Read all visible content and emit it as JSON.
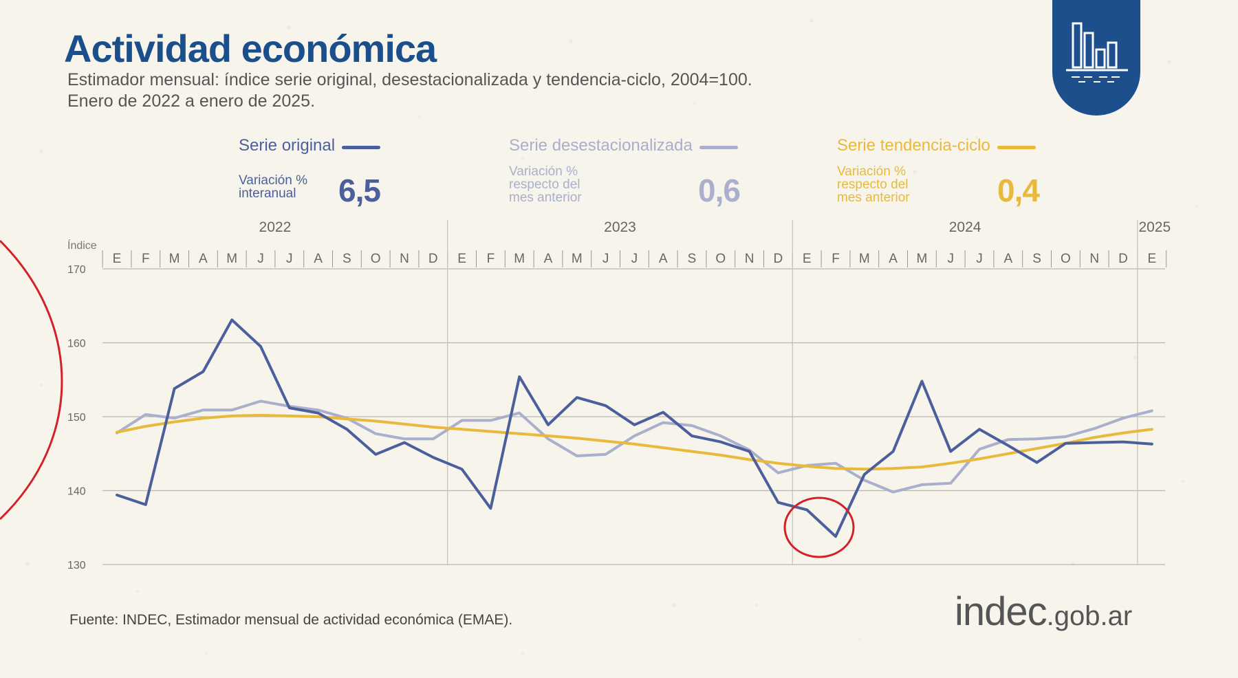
{
  "title": "Actividad económica",
  "subtitle_line1": "Estimador mensual: índice serie original, desestacionalizada y tendencia-ciclo, 2004=100.",
  "subtitle_line2": "Enero de 2022 a enero de 2025.",
  "badge_icon": "bar-chart-icon",
  "legend": [
    {
      "name": "Serie original",
      "desc": "Variación %\ninteranual",
      "value": "6,5",
      "color": "#4a5f9c"
    },
    {
      "name": "Serie desestacionalizada",
      "desc": "Variación %\nrespecto del\nmes anterior",
      "value": "0,6",
      "color": "#a9afcc"
    },
    {
      "name": "Serie tendencia-ciclo",
      "desc": "Variación %\nrespecto del\nmes anterior",
      "value": "0,4",
      "color": "#e8b93a"
    }
  ],
  "source": "Fuente: INDEC, Estimador mensual de actividad económica (EMAE).",
  "logo": {
    "main": "indec",
    "domain": ".gob.ar"
  },
  "chart_data": {
    "type": "line",
    "ylabel": "Índice",
    "ylim": [
      130,
      170
    ],
    "yticks": [
      130,
      140,
      150,
      160,
      170
    ],
    "years": [
      "2022",
      "2023",
      "2024",
      "2025"
    ],
    "months": [
      "E",
      "F",
      "M",
      "A",
      "M",
      "J",
      "J",
      "A",
      "S",
      "O",
      "N",
      "D",
      "E",
      "F",
      "M",
      "A",
      "M",
      "J",
      "J",
      "A",
      "S",
      "O",
      "N",
      "D",
      "E",
      "F",
      "M",
      "A",
      "M",
      "J",
      "J",
      "A",
      "S",
      "O",
      "N",
      "D",
      "E"
    ],
    "grid": true,
    "series": [
      {
        "name": "Serie original",
        "color": "#4a5f9c",
        "values": [
          139.4,
          138.1,
          153.8,
          156.1,
          163.1,
          159.5,
          151.2,
          150.5,
          148.3,
          144.9,
          146.5,
          144.5,
          142.9,
          137.6,
          155.4,
          148.9,
          152.6,
          151.5,
          148.9,
          150.6,
          147.4,
          146.6,
          145.3,
          138.4,
          137.4,
          133.8,
          142.2,
          145.3,
          154.8,
          145.3,
          148.3,
          146.1,
          143.8,
          146.4,
          146.5,
          146.6,
          146.3
        ]
      },
      {
        "name": "Serie desestacionalizada",
        "color": "#a9afcc",
        "values": [
          147.8,
          150.3,
          149.8,
          150.9,
          150.9,
          152.1,
          151.4,
          150.9,
          149.8,
          147.7,
          147.0,
          147.0,
          149.5,
          149.5,
          150.5,
          147.0,
          144.7,
          144.9,
          147.4,
          149.2,
          148.8,
          147.4,
          145.5,
          142.4,
          143.4,
          143.7,
          141.4,
          139.8,
          140.8,
          141.0,
          145.6,
          146.9,
          147.0,
          147.3,
          148.4,
          149.8,
          150.8
        ]
      },
      {
        "name": "Serie tendencia-ciclo",
        "color": "#e8b93a",
        "values": [
          147.9,
          148.7,
          149.3,
          149.8,
          150.1,
          150.2,
          150.1,
          150.0,
          149.7,
          149.4,
          149.0,
          148.6,
          148.3,
          148.0,
          147.7,
          147.4,
          147.1,
          146.7,
          146.3,
          145.8,
          145.3,
          144.8,
          144.2,
          143.7,
          143.3,
          143.0,
          142.9,
          143.0,
          143.2,
          143.7,
          144.3,
          145.0,
          145.7,
          146.4,
          147.2,
          147.8,
          148.3
        ]
      }
    ]
  }
}
